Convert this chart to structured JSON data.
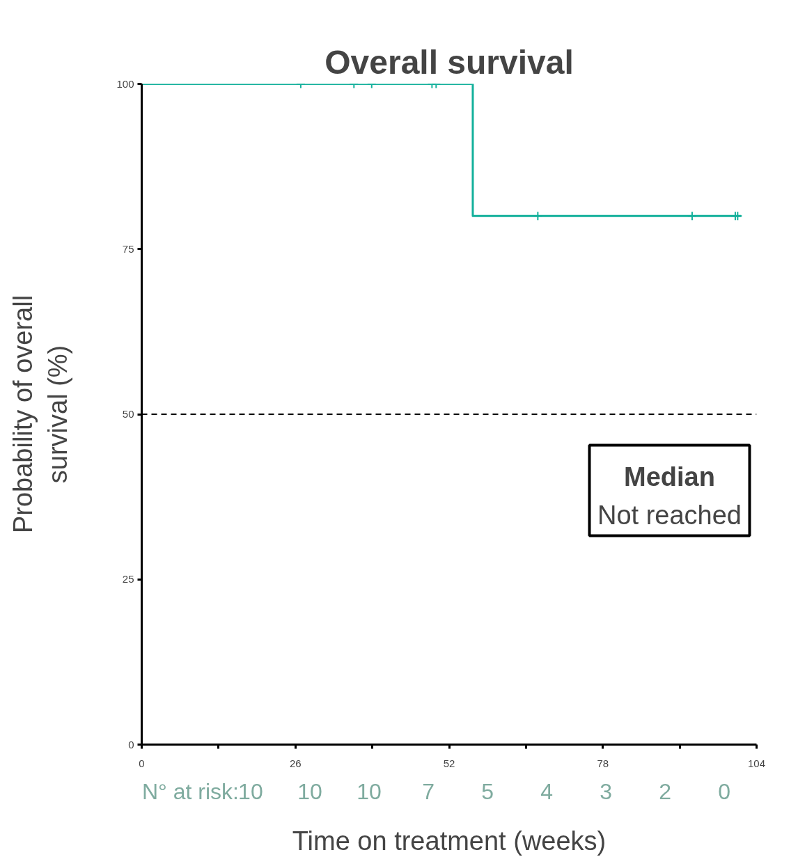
{
  "chart_data": {
    "type": "step",
    "title": "Overall survival",
    "xlabel": "Time on treatment (weeks)",
    "ylabel": "Probability of overall\nsurvival (%)",
    "xlim": [
      0,
      104
    ],
    "xticks": [
      0,
      26,
      52,
      78,
      104
    ],
    "ylim": [
      0,
      100
    ],
    "yticks": [
      0,
      25,
      50,
      75,
      100
    ],
    "grid": false,
    "series": [
      {
        "color": "#13b09b",
        "x": [
          0,
          56,
          101.4
        ],
        "values": [
          100,
          80,
          80
        ],
        "line_style": "solid"
      },
      {
        "type": "scatter",
        "color": "#13b09b",
        "marker": "cross",
        "x": [
          26.9,
          35.9,
          38.9,
          49.1,
          49.8,
          67,
          93.1,
          100.4,
          100.8
        ],
        "values": [
          100,
          100,
          100,
          100,
          100,
          80,
          80,
          80,
          80
        ]
      }
    ],
    "ref_lines": [
      {
        "axis": "y",
        "value": 50,
        "color": "#000000",
        "line_style": "dashed"
      }
    ],
    "annotations": [
      "Median",
      "Not reached",
      "N° at risk:",
      "10",
      "10",
      "10",
      "7",
      "5",
      "4",
      "3",
      "2",
      "0"
    ]
  }
}
